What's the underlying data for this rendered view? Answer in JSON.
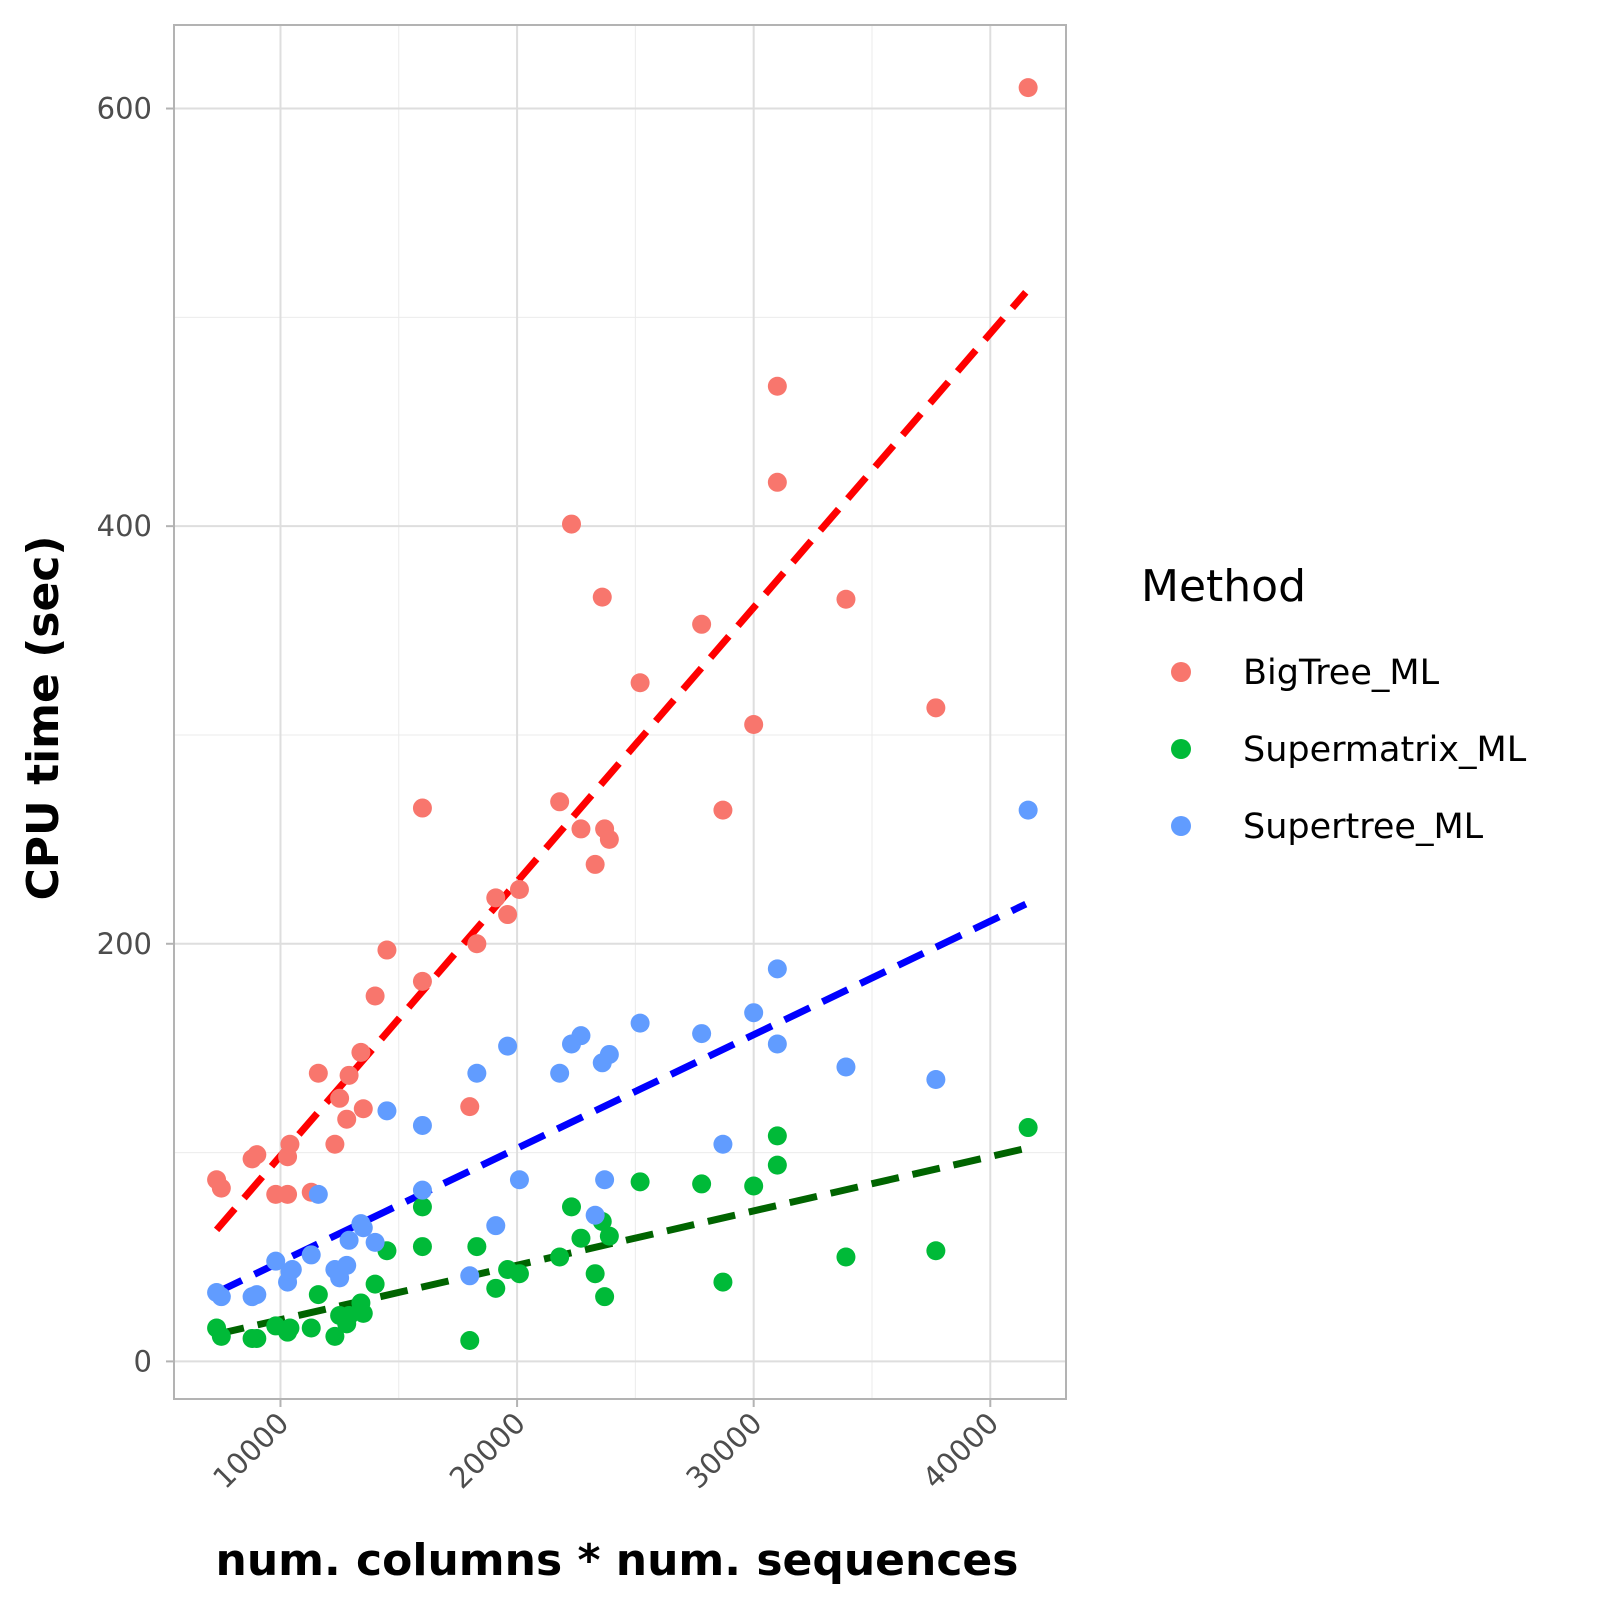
{
  "chart_data": {
    "type": "scatter",
    "xlabel": "num. columns * num. sequences",
    "ylabel": "CPU time (sec)",
    "xlim": [
      5500,
      43200
    ],
    "ylim": [
      -18,
      640
    ],
    "x_ticks": [
      10000,
      20000,
      30000,
      40000
    ],
    "x_tick_labels": [
      "10000",
      "20000",
      "30000",
      "40000"
    ],
    "x_minor_ticks": [
      15000,
      25000,
      35000
    ],
    "y_ticks": [
      0,
      200,
      400,
      600
    ],
    "y_tick_labels": [
      "0",
      "200",
      "400",
      "600"
    ],
    "y_minor_ticks": [
      100,
      300,
      500
    ],
    "grid": true,
    "legend_title": "Method",
    "legend_position": "right",
    "series": [
      {
        "name": "BigTree_ML",
        "color": "#F8766D",
        "trend_color": "#FF0000",
        "trend_line": {
          "x": [
            7300,
            41500
          ],
          "y": [
            63,
            512
          ]
        },
        "points": [
          [
            7300,
            87
          ],
          [
            7500,
            83
          ],
          [
            8800,
            97
          ],
          [
            9000,
            99
          ],
          [
            9800,
            80
          ],
          [
            10300,
            80
          ],
          [
            10300,
            98
          ],
          [
            10400,
            104
          ],
          [
            11300,
            81
          ],
          [
            11600,
            138
          ],
          [
            12300,
            104
          ],
          [
            12500,
            126
          ],
          [
            12800,
            116
          ],
          [
            12900,
            137
          ],
          [
            13400,
            148
          ],
          [
            13500,
            121
          ],
          [
            14000,
            175
          ],
          [
            14500,
            197
          ],
          [
            16000,
            182
          ],
          [
            16000,
            265
          ],
          [
            18000,
            122
          ],
          [
            18300,
            200
          ],
          [
            19100,
            222
          ],
          [
            19600,
            214
          ],
          [
            20100,
            226
          ],
          [
            21800,
            268
          ],
          [
            22300,
            401
          ],
          [
            22700,
            255
          ],
          [
            23300,
            238
          ],
          [
            23600,
            366
          ],
          [
            23700,
            255
          ],
          [
            23900,
            250
          ],
          [
            25200,
            325
          ],
          [
            27800,
            353
          ],
          [
            28700,
            264
          ],
          [
            30000,
            305
          ],
          [
            31000,
            467
          ],
          [
            31000,
            421
          ],
          [
            33900,
            365
          ],
          [
            37700,
            313
          ],
          [
            41600,
            610
          ]
        ]
      },
      {
        "name": "Supermatrix_ML",
        "color": "#00BA38",
        "trend_color": "#006400",
        "trend_line": {
          "x": [
            7300,
            41500
          ],
          "y": [
            13,
            102
          ]
        },
        "points": [
          [
            7300,
            16
          ],
          [
            7500,
            12
          ],
          [
            8800,
            11
          ],
          [
            9000,
            11
          ],
          [
            9800,
            17
          ],
          [
            10300,
            14
          ],
          [
            10400,
            16
          ],
          [
            11300,
            16
          ],
          [
            11600,
            32
          ],
          [
            12300,
            12
          ],
          [
            12500,
            22
          ],
          [
            12800,
            18
          ],
          [
            12900,
            22
          ],
          [
            13400,
            28
          ],
          [
            13500,
            23
          ],
          [
            14000,
            37
          ],
          [
            14500,
            53
          ],
          [
            16000,
            74
          ],
          [
            16000,
            55
          ],
          [
            18000,
            10
          ],
          [
            18300,
            55
          ],
          [
            19100,
            35
          ],
          [
            19600,
            44
          ],
          [
            20100,
            42
          ],
          [
            21800,
            50
          ],
          [
            22300,
            74
          ],
          [
            22700,
            59
          ],
          [
            23300,
            42
          ],
          [
            23600,
            67
          ],
          [
            23700,
            31
          ],
          [
            23900,
            60
          ],
          [
            25200,
            86
          ],
          [
            27800,
            85
          ],
          [
            28700,
            38
          ],
          [
            30000,
            84
          ],
          [
            31000,
            108
          ],
          [
            31000,
            94
          ],
          [
            33900,
            50
          ],
          [
            37700,
            53
          ],
          [
            41600,
            112
          ]
        ]
      },
      {
        "name": "Supertree_ML",
        "color": "#619CFF",
        "trend_color": "#0000FF",
        "trend_line": {
          "x": [
            7300,
            41500
          ],
          "y": [
            33,
            219
          ]
        },
        "points": [
          [
            7300,
            33
          ],
          [
            7500,
            31
          ],
          [
            8800,
            31
          ],
          [
            9000,
            32
          ],
          [
            9800,
            48
          ],
          [
            10300,
            38
          ],
          [
            10400,
            43
          ],
          [
            10500,
            44
          ],
          [
            11300,
            51
          ],
          [
            11600,
            80
          ],
          [
            12300,
            44
          ],
          [
            12500,
            40
          ],
          [
            12800,
            46
          ],
          [
            12900,
            58
          ],
          [
            13400,
            66
          ],
          [
            13500,
            64
          ],
          [
            14000,
            57
          ],
          [
            14500,
            120
          ],
          [
            16000,
            113
          ],
          [
            16000,
            82
          ],
          [
            18000,
            41
          ],
          [
            18300,
            138
          ],
          [
            19100,
            65
          ],
          [
            19600,
            151
          ],
          [
            20100,
            87
          ],
          [
            21800,
            138
          ],
          [
            22300,
            152
          ],
          [
            22700,
            156
          ],
          [
            23300,
            70
          ],
          [
            23600,
            143
          ],
          [
            23700,
            87
          ],
          [
            23900,
            147
          ],
          [
            25200,
            162
          ],
          [
            27800,
            157
          ],
          [
            28700,
            104
          ],
          [
            30000,
            167
          ],
          [
            31000,
            188
          ],
          [
            31000,
            152
          ],
          [
            33900,
            141
          ],
          [
            37700,
            135
          ],
          [
            41600,
            264
          ]
        ]
      }
    ]
  }
}
